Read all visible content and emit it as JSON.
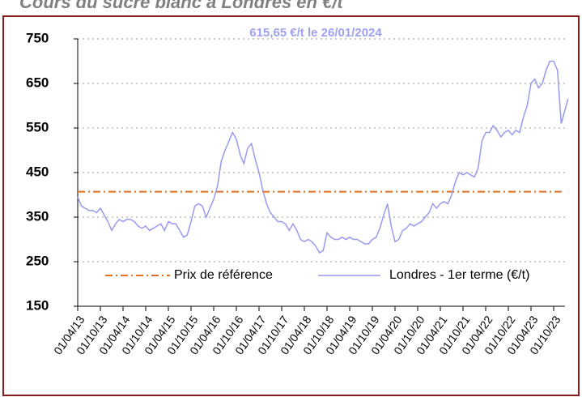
{
  "chart_data": {
    "type": "line",
    "title": "Cours du sucre blanc à Londres en €/t",
    "annotation": "615,65 €/t le 26/01/2024",
    "x": [
      "01/04/13",
      "01/05/13",
      "01/06/13",
      "01/07/13",
      "01/08/13",
      "01/09/13",
      "01/10/13",
      "01/11/13",
      "01/12/13",
      "01/01/14",
      "01/02/14",
      "01/03/14",
      "01/04/14",
      "01/05/14",
      "01/06/14",
      "01/07/14",
      "01/08/14",
      "01/09/14",
      "01/10/14",
      "01/11/14",
      "01/12/14",
      "01/01/15",
      "01/02/15",
      "01/03/15",
      "01/04/15",
      "01/05/15",
      "01/06/15",
      "01/07/15",
      "01/08/15",
      "01/09/15",
      "01/10/15",
      "01/11/15",
      "01/12/15",
      "01/01/16",
      "01/02/16",
      "01/03/16",
      "01/04/16",
      "01/05/16",
      "01/06/16",
      "01/07/16",
      "01/08/16",
      "01/09/16",
      "01/10/16",
      "01/11/16",
      "01/12/16",
      "01/01/17",
      "01/02/17",
      "01/03/17",
      "01/04/17",
      "01/05/17",
      "01/06/17",
      "01/07/17",
      "01/08/17",
      "01/09/17",
      "01/10/17",
      "01/11/17",
      "01/12/17",
      "01/01/18",
      "01/02/18",
      "01/03/18",
      "01/04/18",
      "01/05/18",
      "01/06/18",
      "01/07/18",
      "01/08/18",
      "01/09/18",
      "01/10/18",
      "01/11/18",
      "01/12/18",
      "01/01/19",
      "01/02/19",
      "01/03/19",
      "01/04/19",
      "01/05/19",
      "01/06/19",
      "01/07/19",
      "01/08/19",
      "01/09/19",
      "01/10/19",
      "01/11/19",
      "01/12/19",
      "01/01/20",
      "01/02/20",
      "01/03/20",
      "01/04/20",
      "01/05/20",
      "01/06/20",
      "01/07/20",
      "01/08/20",
      "01/09/20",
      "01/10/20",
      "01/11/20",
      "01/12/20",
      "01/01/21",
      "01/02/21",
      "01/03/21",
      "01/04/21",
      "01/05/21",
      "01/06/21",
      "01/07/21",
      "01/08/21",
      "01/09/21",
      "01/10/21",
      "01/11/21",
      "01/12/21",
      "01/01/22",
      "01/02/22",
      "01/03/22",
      "01/04/22",
      "01/05/22",
      "01/06/22",
      "01/07/22",
      "01/08/22",
      "01/09/22",
      "01/10/22",
      "01/11/22",
      "01/12/22",
      "01/01/23",
      "01/02/23",
      "01/03/23",
      "01/04/23",
      "01/05/23",
      "01/06/23",
      "01/07/23",
      "01/08/23",
      "01/09/23",
      "01/10/23",
      "01/11/23",
      "01/12/23",
      "26/01/24"
    ],
    "series": [
      {
        "name": "Londres - 1er terme (€/t)",
        "color": "#9999ee",
        "values": [
          395,
          375,
          370,
          365,
          365,
          360,
          370,
          355,
          340,
          320,
          335,
          345,
          340,
          345,
          345,
          340,
          330,
          325,
          330,
          320,
          325,
          330,
          335,
          320,
          340,
          335,
          335,
          320,
          305,
          310,
          340,
          375,
          380,
          375,
          350,
          370,
          390,
          420,
          475,
          500,
          520,
          540,
          525,
          490,
          470,
          505,
          515,
          480,
          450,
          410,
          380,
          360,
          350,
          340,
          340,
          335,
          320,
          335,
          320,
          300,
          295,
          300,
          295,
          285,
          270,
          275,
          315,
          305,
          300,
          300,
          305,
          300,
          305,
          300,
          300,
          295,
          290,
          290,
          300,
          305,
          325,
          355,
          380,
          330,
          295,
          300,
          320,
          325,
          335,
          330,
          335,
          340,
          350,
          360,
          380,
          370,
          380,
          385,
          380,
          400,
          430,
          450,
          445,
          450,
          445,
          440,
          460,
          520,
          540,
          540,
          555,
          545,
          530,
          540,
          545,
          535,
          545,
          540,
          575,
          600,
          650,
          660,
          640,
          650,
          680,
          700,
          700,
          680,
          560,
          615.65
        ]
      }
    ],
    "reference": {
      "name": "Prix de référence",
      "value": 407,
      "color": "#e07020"
    },
    "xticks": [
      "01/04/13",
      "01/10/13",
      "01/04/14",
      "01/10/14",
      "01/04/15",
      "01/10/15",
      "01/04/16",
      "01/10/16",
      "01/04/17",
      "01/10/17",
      "01/04/18",
      "01/10/18",
      "01/04/19",
      "01/10/19",
      "01/04/20",
      "01/10/20",
      "01/04/21",
      "01/10/21",
      "01/04/22",
      "01/10/22",
      "01/04/23",
      "01/10/23"
    ],
    "ylim": [
      150,
      750
    ],
    "yticks": [
      150,
      250,
      350,
      450,
      550,
      650,
      750
    ],
    "grid": true
  }
}
